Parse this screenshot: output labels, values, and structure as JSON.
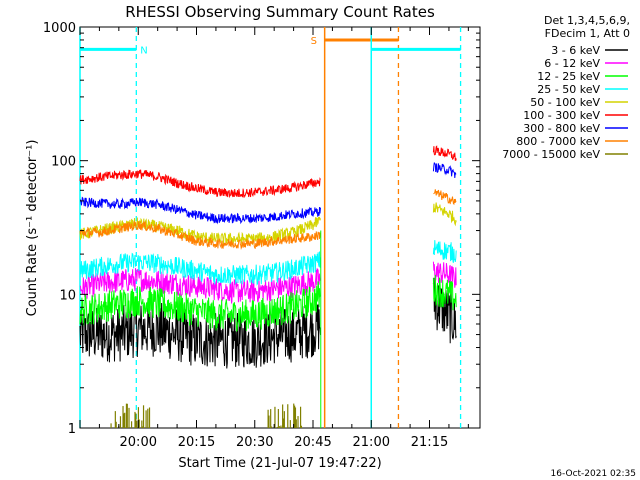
{
  "chart_data": {
    "type": "line",
    "title": "RHESSI Observing Summary Count Rates",
    "xlabel": "Start Time (21-Jul-07 19:47:22)",
    "ylabel": "Count Rate (s⁻¹ detector⁻¹)",
    "y_scale": "log",
    "ylim": [
      1,
      1000
    ],
    "xlim_minutes_after_1945": [
      0,
      103
    ],
    "x_ticks": [
      {
        "label": "20:00",
        "min": 15
      },
      {
        "label": "20:15",
        "min": 30
      },
      {
        "label": "20:30",
        "min": 45
      },
      {
        "label": "20:45",
        "min": 60
      },
      {
        "label": "21:00",
        "min": 75
      },
      {
        "label": "21:15",
        "min": 90
      }
    ],
    "y_ticks": [
      {
        "label": "1",
        "value": 1
      },
      {
        "label": "10",
        "value": 10
      },
      {
        "label": "100",
        "value": 100
      },
      {
        "label": "1000",
        "value": 1000
      }
    ],
    "legend": {
      "placement": "right",
      "header": [
        "Det 1,3,4,5,6,9,",
        "FDecim 1, Att 0"
      ],
      "entries": [
        {
          "label": "3 - 6 keV",
          "color": "#000000"
        },
        {
          "label": "6 - 12 keV",
          "color": "#ff00ff"
        },
        {
          "label": "12 - 25 keV",
          "color": "#00ff00"
        },
        {
          "label": "25 - 50 keV",
          "color": "#00ffff"
        },
        {
          "label": "50 - 100 keV",
          "color": "#d4d400"
        },
        {
          "label": "100 - 300 keV",
          "color": "#ff0000"
        },
        {
          "label": "300 - 800 keV",
          "color": "#0000ff"
        },
        {
          "label": "800 - 7000 keV",
          "color": "#ff8000"
        },
        {
          "label": "7000 - 15000 keV",
          "color": "#808000"
        }
      ]
    },
    "series": [
      {
        "name": "3 - 6 keV",
        "color": "#000000",
        "noise": 0.07,
        "segments": [
          {
            "x": [
              0,
              5,
              10,
              15,
              20,
              25,
              30,
              35,
              40,
              45,
              50,
              55,
              60,
              62
            ],
            "y": [
              5,
              5,
              5,
              5.5,
              5.5,
              5,
              4.5,
              4.5,
              4.5,
              4.5,
              4.8,
              5,
              5.5,
              6
            ]
          },
          {
            "x": [
              91,
              95,
              97
            ],
            "y": [
              9,
              7,
              6
            ]
          }
        ]
      },
      {
        "name": "6 - 12 keV",
        "color": "#ff00ff",
        "noise": 0.03,
        "segments": [
          {
            "x": [
              0,
              5,
              10,
              15,
              20,
              25,
              30,
              35,
              40,
              45,
              50,
              55,
              60,
              62
            ],
            "y": [
              11,
              12,
              12.5,
              13,
              12.5,
              12,
              11.5,
              11,
              10.5,
              10.5,
              11,
              11.5,
              12.5,
              13
            ]
          },
          {
            "x": [
              91,
              95,
              97
            ],
            "y": [
              15,
              14,
              13
            ]
          }
        ]
      },
      {
        "name": "12 - 25 keV",
        "color": "#00ff00",
        "noise": 0.04,
        "segments": [
          {
            "x": [
              0,
              5,
              10,
              15,
              20,
              25,
              30,
              35,
              40,
              45,
              50,
              55,
              60,
              62
            ],
            "y": [
              7.5,
              8,
              8.5,
              9,
              8.5,
              8,
              7.5,
              7,
              7,
              7,
              7.5,
              8,
              9,
              10
            ]
          },
          {
            "x": [
              91,
              95,
              97
            ],
            "y": [
              11,
              10,
              9
            ]
          }
        ]
      },
      {
        "name": "25 - 50 keV",
        "color": "#00ffff",
        "noise": 0.025,
        "segments": [
          {
            "x": [
              0,
              5,
              10,
              15,
              20,
              25,
              30,
              35,
              40,
              45,
              50,
              55,
              60,
              62
            ],
            "y": [
              15,
              16,
              17,
              17.5,
              17,
              16,
              15,
              14,
              14,
              14,
              14.5,
              15.5,
              17,
              18
            ]
          },
          {
            "x": [
              91,
              95,
              97
            ],
            "y": [
              22,
              21,
              20
            ]
          }
        ]
      },
      {
        "name": "50 - 100 keV",
        "color": "#d4d400",
        "noise": 0.015,
        "segments": [
          {
            "x": [
              0,
              5,
              10,
              15,
              20,
              25,
              30,
              35,
              40,
              45,
              50,
              55,
              60,
              62
            ],
            "y": [
              28,
              30,
              32,
              34,
              32,
              30,
              27,
              26,
              26,
              26,
              27,
              29,
              33,
              36
            ]
          },
          {
            "x": [
              91,
              95,
              97
            ],
            "y": [
              45,
              40,
              36
            ]
          }
        ]
      },
      {
        "name": "100 - 300 keV",
        "color": "#ff0000",
        "noise": 0.012,
        "segments": [
          {
            "x": [
              0,
              5,
              10,
              15,
              20,
              25,
              30,
              35,
              40,
              45,
              50,
              55,
              60,
              62
            ],
            "y": [
              72,
              75,
              78,
              80,
              76,
              68,
              62,
              58,
              57,
              58,
              60,
              63,
              68,
              70
            ]
          },
          {
            "x": [
              91,
              95,
              97
            ],
            "y": [
              120,
              112,
              105
            ]
          }
        ]
      },
      {
        "name": "300 - 800 keV",
        "color": "#0000ff",
        "noise": 0.012,
        "segments": [
          {
            "x": [
              0,
              5,
              10,
              15,
              20,
              25,
              30,
              35,
              40,
              45,
              50,
              55,
              60,
              62
            ],
            "y": [
              49,
              48,
              47,
              49,
              47,
              43,
              39,
              37,
              37,
              37,
              38,
              40,
              41,
              42
            ]
          },
          {
            "x": [
              91,
              95,
              97
            ],
            "y": [
              90,
              85,
              78
            ]
          }
        ]
      },
      {
        "name": "800 - 7000 keV",
        "color": "#ff8000",
        "noise": 0.012,
        "segments": [
          {
            "x": [
              0,
              5,
              10,
              15,
              20,
              25,
              30,
              35,
              40,
              45,
              50,
              55,
              60,
              62
            ],
            "y": [
              29,
              29,
              31,
              33,
              31,
              28,
              25,
              24,
              24,
              24,
              25,
              26,
              27,
              28
            ]
          },
          {
            "x": [
              91,
              95,
              97
            ],
            "y": [
              58,
              52,
              48
            ]
          }
        ]
      },
      {
        "name": "7000 - 15000 keV",
        "color": "#808000",
        "noise": 0,
        "segments": [
          {
            "x": [
              8,
              18
            ],
            "y": [
              1,
              1
            ]
          },
          {
            "x": [
              48,
              58
            ],
            "y": [
              1,
              1
            ]
          }
        ]
      }
    ],
    "flag_markers": [
      {
        "label": "N",
        "color": "#00ffff",
        "bar": [
          0,
          14.5
        ],
        "start_min": 0,
        "end_min": 14.5,
        "bar_value": 680
      },
      {
        "label": "S",
        "color": "#ff8000",
        "bar": [
          63,
          82
        ],
        "start_min": 63,
        "end_min": 82,
        "bar_value": 800
      },
      {
        "label": "",
        "color": "#00ffff",
        "bar": [
          75,
          98
        ],
        "start_min": 75,
        "end_min": 98,
        "bar_value": 680
      }
    ],
    "timestamp": "16-Oct-2021 02:35"
  }
}
